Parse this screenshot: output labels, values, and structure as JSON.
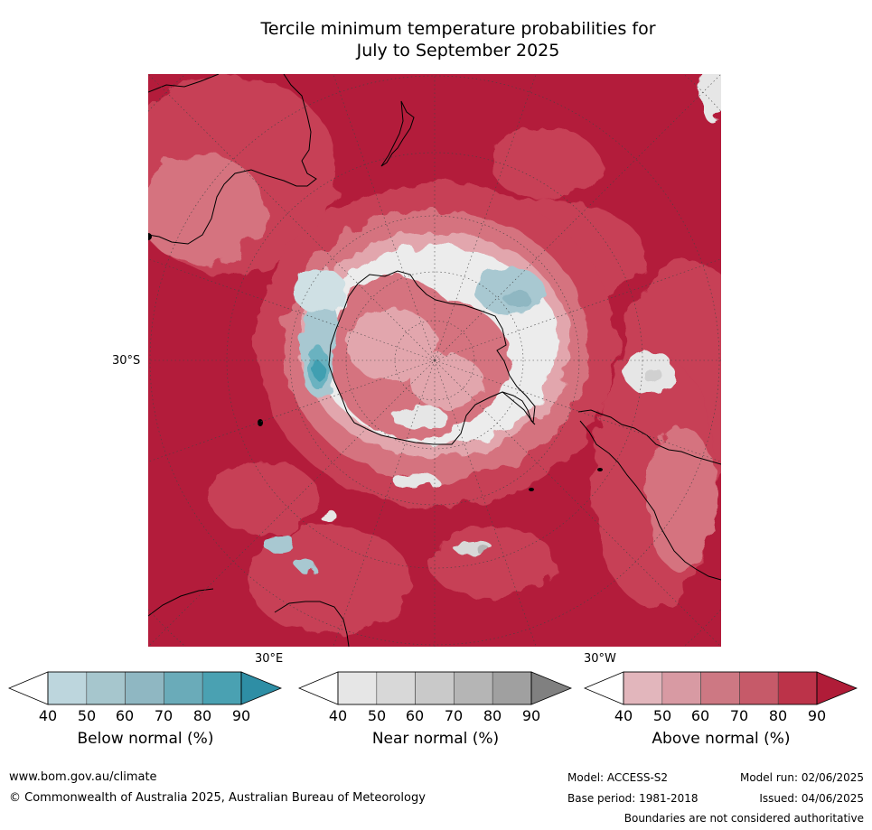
{
  "title": {
    "line1": "Tercile minimum temperature probabilities for",
    "line2": "July to September 2025"
  },
  "map": {
    "projection": "south-polar-stereographic",
    "latitude_label": "30°S",
    "longitude_labels": [
      "30°E",
      "30°W"
    ],
    "colors": {
      "ocean_warm": "#b31c3b",
      "above_60": "#c73f56",
      "above_50": "#d5737f",
      "above_40": "#e2a6ad",
      "near": "#e6e6e6",
      "below_50": "#a8c8d1",
      "below_70": "#6ab2c0",
      "below_90": "#3f9fb1"
    }
  },
  "legends": [
    {
      "label": "Below normal (%)",
      "ticks": [
        "40",
        "50",
        "60",
        "70",
        "80",
        "90"
      ],
      "colors": [
        "#ffffff",
        "#bdd6dd",
        "#a6c6cd",
        "#8fb7c2",
        "#6aabb9",
        "#4aa1b2",
        "#2e8ea5"
      ]
    },
    {
      "label": "Near normal (%)",
      "ticks": [
        "40",
        "50",
        "60",
        "70",
        "80",
        "90"
      ],
      "colors": [
        "#ffffff",
        "#e6e6e6",
        "#d8d8d8",
        "#c9c9c9",
        "#b5b5b5",
        "#a0a0a0",
        "#808080"
      ]
    },
    {
      "label": "Above normal (%)",
      "ticks": [
        "40",
        "50",
        "60",
        "70",
        "80",
        "90"
      ],
      "colors": [
        "#ffffff",
        "#e2b6bc",
        "#d89aa3",
        "#cd7883",
        "#c65a69",
        "#bc3349",
        "#b01c38"
      ]
    }
  ],
  "footer": {
    "website": "www.bom.gov.au/climate",
    "copyright": "© Commonwealth of Australia 2025, Australian Bureau of Meteorology",
    "model": "Model: ACCESS-S2",
    "model_run": "Model run: 02/06/2025",
    "base_period": "Base period: 1981-2018",
    "issued": "Issued: 04/06/2025",
    "disclaimer": "Boundaries are not considered authoritative"
  }
}
